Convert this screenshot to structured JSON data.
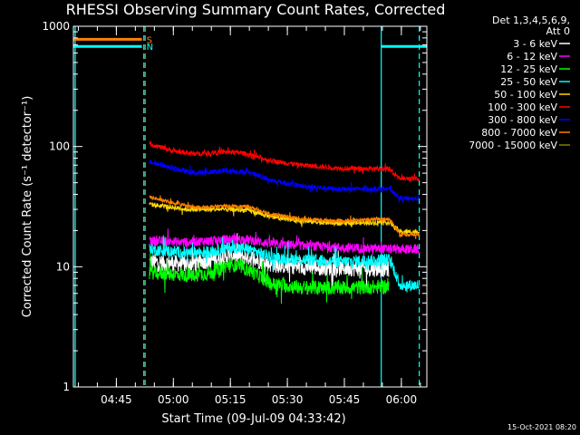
{
  "chart_data": {
    "type": "line",
    "title": "RHESSI Observing Summary Count Rates, Corrected",
    "xlabel": "Start Time (09-Jul-09 04:33:42)",
    "ylabel": "Corrected Count Rate (s⁻¹ detector⁻¹)",
    "yscale": "log",
    "ylim": [
      1,
      1000
    ],
    "yticks": [
      "1",
      "10",
      "100",
      "1000"
    ],
    "xlim_min": [
      0,
      93
    ],
    "xticks": [
      "04:45",
      "05:00",
      "05:15",
      "05:30",
      "05:45",
      "06:00"
    ],
    "xtick_min": [
      11.3,
      26.3,
      41.3,
      56.3,
      71.3,
      86.3
    ],
    "legend_header": [
      "Det 1,3,4,5,6,9,",
      "Att 0"
    ],
    "legend_position": "top-right",
    "data_start_min": 18.5,
    "data_end_min": 91,
    "night_end_min": 18.5,
    "night_start_min": 81,
    "saa_markers": [
      {
        "label": "S",
        "color": "#ff8000",
        "value": 780
      },
      {
        "label": "N",
        "color": "#00ffff",
        "value": 680
      }
    ],
    "flag_lines": [
      {
        "x": 18.5,
        "color": "#ff8000",
        "style": "dashed"
      },
      {
        "x": 18.5,
        "color": "#00ffff",
        "style": "dashed"
      },
      {
        "x": 81,
        "color": "#00ffff",
        "style": "solid"
      },
      {
        "x": 91,
        "color": "#00ffff",
        "style": "dashed"
      }
    ],
    "series": [
      {
        "name": "3 - 6 keV",
        "color": "#ffffff",
        "points": [
          [
            20,
            11
          ],
          [
            30,
            10.5
          ],
          [
            37,
            11.5
          ],
          [
            42,
            12.5
          ],
          [
            46,
            12
          ],
          [
            52,
            10.5
          ],
          [
            60,
            10
          ],
          [
            70,
            9.8
          ],
          [
            83,
            9.6
          ]
        ],
        "noise": 0.07
      },
      {
        "name": "6 - 12 keV",
        "color": "#ff00ff",
        "points": [
          [
            20,
            16.5
          ],
          [
            30,
            16
          ],
          [
            37,
            16.5
          ],
          [
            42,
            17
          ],
          [
            46,
            16.8
          ],
          [
            52,
            15.5
          ],
          [
            60,
            15
          ],
          [
            70,
            14.5
          ],
          [
            83,
            14
          ],
          [
            86,
            14
          ],
          [
            91,
            14
          ]
        ],
        "noise": 0.04
      },
      {
        "name": "12 - 25 keV",
        "color": "#00ff00",
        "points": [
          [
            20,
            9
          ],
          [
            30,
            8.5
          ],
          [
            36,
            8.8
          ],
          [
            41,
            10.5
          ],
          [
            45,
            9.8
          ],
          [
            52,
            7.2
          ],
          [
            60,
            6.7
          ],
          [
            70,
            6.7
          ],
          [
            83,
            6.8
          ]
        ],
        "noise": 0.06
      },
      {
        "name": "25 - 50 keV",
        "color": "#00ffff",
        "points": [
          [
            20,
            14
          ],
          [
            30,
            13
          ],
          [
            37,
            13.5
          ],
          [
            42,
            14.5
          ],
          [
            46,
            14
          ],
          [
            52,
            12
          ],
          [
            60,
            11.5
          ],
          [
            70,
            11
          ],
          [
            83,
            11.5
          ],
          [
            86,
            7
          ],
          [
            91,
            7
          ]
        ],
        "noise": 0.05
      },
      {
        "name": "50 - 100 keV",
        "color": "#ffd700",
        "points": [
          [
            20,
            33
          ],
          [
            30,
            30
          ],
          [
            40,
            30
          ],
          [
            46,
            29.5
          ],
          [
            52,
            26
          ],
          [
            60,
            24
          ],
          [
            70,
            23
          ],
          [
            83,
            23.5
          ],
          [
            86,
            19.5
          ],
          [
            91,
            19.5
          ]
        ],
        "noise": 0.02
      },
      {
        "name": "100 - 300 keV",
        "color": "#ff0000",
        "points": [
          [
            20,
            105
          ],
          [
            26,
            92
          ],
          [
            32,
            87
          ],
          [
            40,
            90
          ],
          [
            44,
            89
          ],
          [
            52,
            76
          ],
          [
            60,
            70
          ],
          [
            70,
            66
          ],
          [
            83,
            65
          ],
          [
            86,
            54
          ],
          [
            91,
            54
          ]
        ],
        "noise": 0.02
      },
      {
        "name": "300 - 800 keV",
        "color": "#0000ff",
        "points": [
          [
            20,
            75
          ],
          [
            26,
            66
          ],
          [
            32,
            60
          ],
          [
            40,
            63
          ],
          [
            46,
            61
          ],
          [
            52,
            52
          ],
          [
            60,
            47
          ],
          [
            70,
            44
          ],
          [
            83,
            45
          ],
          [
            86,
            37
          ],
          [
            91,
            37
          ]
        ],
        "noise": 0.02
      },
      {
        "name": "800 - 7000 keV",
        "color": "#ff8000",
        "points": [
          [
            20,
            38
          ],
          [
            26,
            34
          ],
          [
            32,
            31
          ],
          [
            40,
            32
          ],
          [
            46,
            31.5
          ],
          [
            52,
            27.5
          ],
          [
            60,
            25
          ],
          [
            70,
            24
          ],
          [
            83,
            25
          ],
          [
            86,
            18.5
          ],
          [
            91,
            18.5
          ]
        ],
        "noise": 0.015
      },
      {
        "name": "7000 - 15000 keV",
        "color": "#808000",
        "points": [
          [
            86,
            0.98
          ],
          [
            91,
            0.98
          ]
        ],
        "noise": 0
      }
    ]
  },
  "footer": {
    "timestamp": "15-Oct-2021 08:20"
  }
}
